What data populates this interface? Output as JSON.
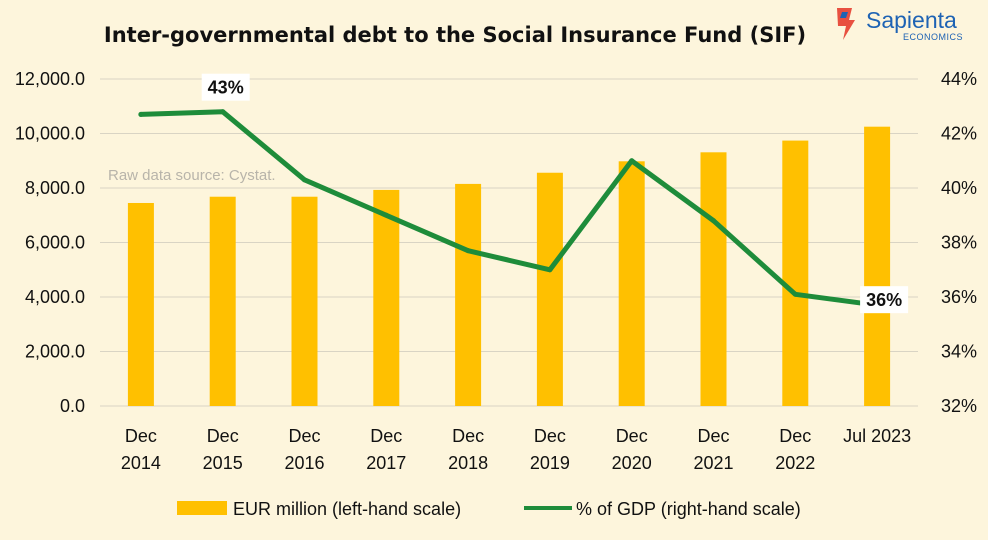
{
  "chart_data": {
    "type": "bar",
    "title": "Inter-governmental debt to the Social Insurance Fund (SIF)",
    "source_note": "Raw data source: Cystat.",
    "categories": [
      [
        "Dec",
        "2014"
      ],
      [
        "Dec",
        "2015"
      ],
      [
        "Dec",
        "2016"
      ],
      [
        "Dec",
        "2017"
      ],
      [
        "Dec",
        "2018"
      ],
      [
        "Dec",
        "2019"
      ],
      [
        "Dec",
        "2020"
      ],
      [
        "Dec",
        "2021"
      ],
      [
        "Dec",
        "2022"
      ],
      [
        "Jul 2023"
      ]
    ],
    "series": [
      {
        "name": "EUR million (left-hand scale)",
        "type": "bar",
        "axis": "left",
        "color": "#FFC000",
        "values": [
          7450,
          7680,
          7680,
          7930,
          8150,
          8560,
          8980,
          9310,
          9740,
          10250
        ]
      },
      {
        "name": "% of GDP (right-hand scale)",
        "type": "line",
        "axis": "right",
        "color": "#1E8C3A",
        "values": [
          42.7,
          42.8,
          40.3,
          39.0,
          37.7,
          37.0,
          41.0,
          38.8,
          36.1,
          35.7
        ]
      }
    ],
    "y_left": {
      "min": 0,
      "max": 12000,
      "ticks": [
        "0.0",
        "2,000.0",
        "4,000.0",
        "6,000.0",
        "8,000.0",
        "10,000.0",
        "12,000.0"
      ]
    },
    "y_right": {
      "min": 32,
      "max": 44,
      "ticks": [
        "32%",
        "34%",
        "36%",
        "38%",
        "40%",
        "42%",
        "44%"
      ]
    },
    "annotations": [
      {
        "text": "43%",
        "category_index": 1
      },
      {
        "text": "36%",
        "category_index": 9
      }
    ],
    "grid": true,
    "legend_position": "bottom"
  },
  "logo": {
    "name": "Sapienta",
    "sub": "ECONOMICS"
  }
}
